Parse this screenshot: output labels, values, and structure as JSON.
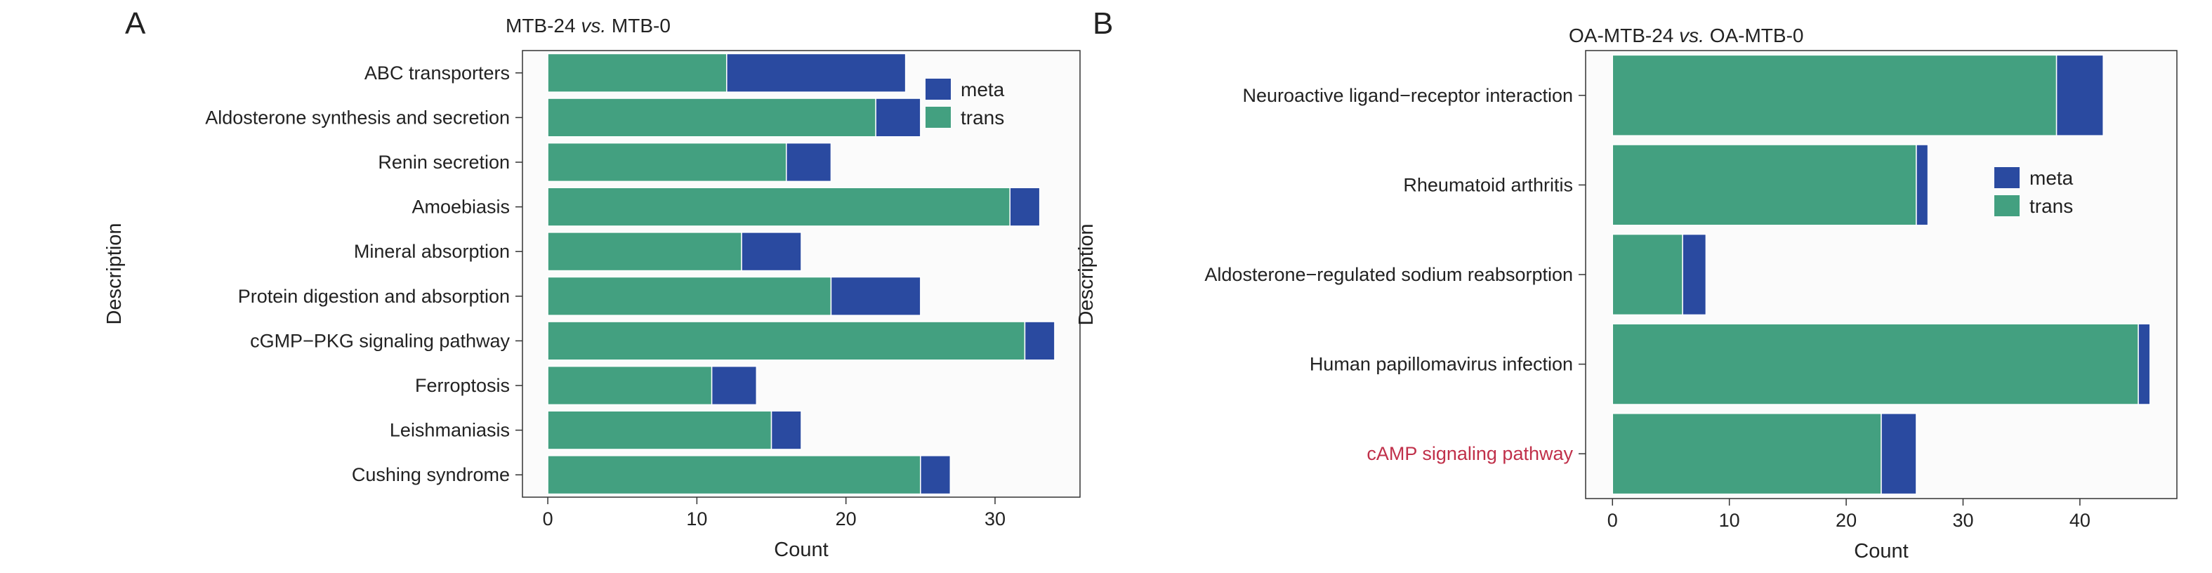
{
  "colors": {
    "trans": "#43a080",
    "meta": "#2a4aa0",
    "highlight": "#c0304a"
  },
  "chart_data": [
    {
      "type": "bar",
      "orientation": "horizontal",
      "stacked": true,
      "panel": "A",
      "title_prefix": "MTB-24 ",
      "title_vs": "vs.",
      "title_suffix": " MTB-0",
      "xlabel": "Count",
      "ylabel": "Description",
      "xlim": [
        -1.7,
        35.7
      ],
      "xticks": [
        0,
        10,
        20,
        30
      ],
      "categories": [
        "ABC transporters",
        "Aldosterone synthesis and secretion",
        "Renin secretion",
        "Amoebiasis",
        "Mineral absorption",
        "Protein digestion and absorption",
        "cGMP−PKG signaling pathway",
        "Ferroptosis",
        "Leishmaniasis",
        "Cushing syndrome"
      ],
      "highlighted_categories": [],
      "series": [
        {
          "name": "trans",
          "values": [
            12,
            22,
            16,
            31,
            13,
            19,
            32,
            11,
            15,
            25
          ]
        },
        {
          "name": "meta",
          "values": [
            12,
            3,
            3,
            2,
            4,
            6,
            2,
            3,
            2,
            2
          ]
        }
      ],
      "legend": {
        "placement": "top-right",
        "entries": [
          "meta",
          "trans"
        ]
      },
      "grid": false
    },
    {
      "type": "bar",
      "orientation": "horizontal",
      "stacked": true,
      "panel": "B",
      "title_prefix": "OA-MTB-24 ",
      "title_vs": "vs.",
      "title_suffix": " OA-MTB-0",
      "xlabel": "Count",
      "ylabel": "Description",
      "xlim": [
        -2.3,
        48.3
      ],
      "xticks": [
        0,
        10,
        20,
        30,
        40
      ],
      "categories": [
        "Neuroactive ligand−receptor interaction",
        "Rheumatoid arthritis",
        "Aldosterone−regulated sodium reabsorption",
        "Human papillomavirus infection",
        "cAMP signaling pathway"
      ],
      "highlighted_categories": [
        "cAMP signaling pathway"
      ],
      "series": [
        {
          "name": "trans",
          "values": [
            38,
            26,
            6,
            45,
            23
          ]
        },
        {
          "name": "meta",
          "values": [
            4,
            1,
            2,
            1,
            3
          ]
        }
      ],
      "legend": {
        "placement": "right",
        "entries": [
          "meta",
          "trans"
        ]
      },
      "grid": false
    }
  ]
}
